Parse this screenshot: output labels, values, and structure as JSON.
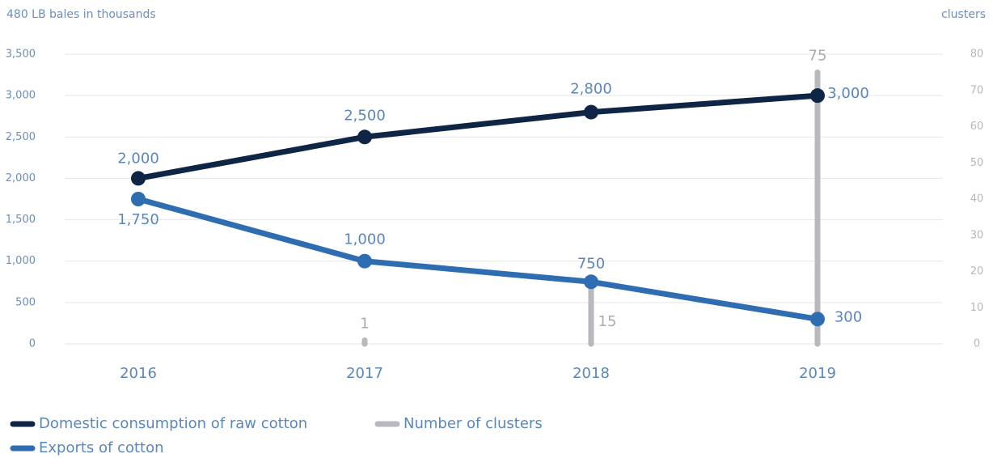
{
  "chart_data": {
    "type": "line",
    "y_label": "480 LB bales in thousands",
    "y2_label": "clusters",
    "categories": [
      "2016",
      "2017",
      "2018",
      "2019"
    ],
    "ylim": [
      0,
      3500
    ],
    "yticks": [
      0,
      500,
      {
        "value": 1000,
        "label": "1,000"
      },
      {
        "value": 1500,
        "label": "1,500"
      },
      {
        "value": 2000,
        "label": "2,000"
      },
      {
        "value": 2500,
        "label": "2,500"
      },
      {
        "value": 3000,
        "label": "3,000"
      },
      {
        "value": 3500,
        "label": "3,500"
      }
    ],
    "y2lim": [
      0,
      80
    ],
    "y2ticks": [
      0,
      10,
      20,
      30,
      40,
      50,
      60,
      70,
      80
    ],
    "grid": true,
    "series": [
      {
        "name": "Domestic consumption of raw cotton",
        "color": "#0f2545",
        "values": [
          2000,
          2500,
          2800,
          3000
        ],
        "value_labels": [
          "2,000",
          "2,500",
          "2,800",
          "3,000"
        ]
      },
      {
        "name": "Number of clusters",
        "type": "bar",
        "axis": "y2",
        "color": "#b7b9bc",
        "values": [
          null,
          1,
          15,
          75
        ]
      },
      {
        "name": "Exports of cotton",
        "color": "#2f6db2",
        "values": [
          1750,
          1000,
          750,
          300
        ],
        "value_labels": [
          "1,750",
          "1,000",
          "750",
          "300"
        ]
      }
    ]
  }
}
